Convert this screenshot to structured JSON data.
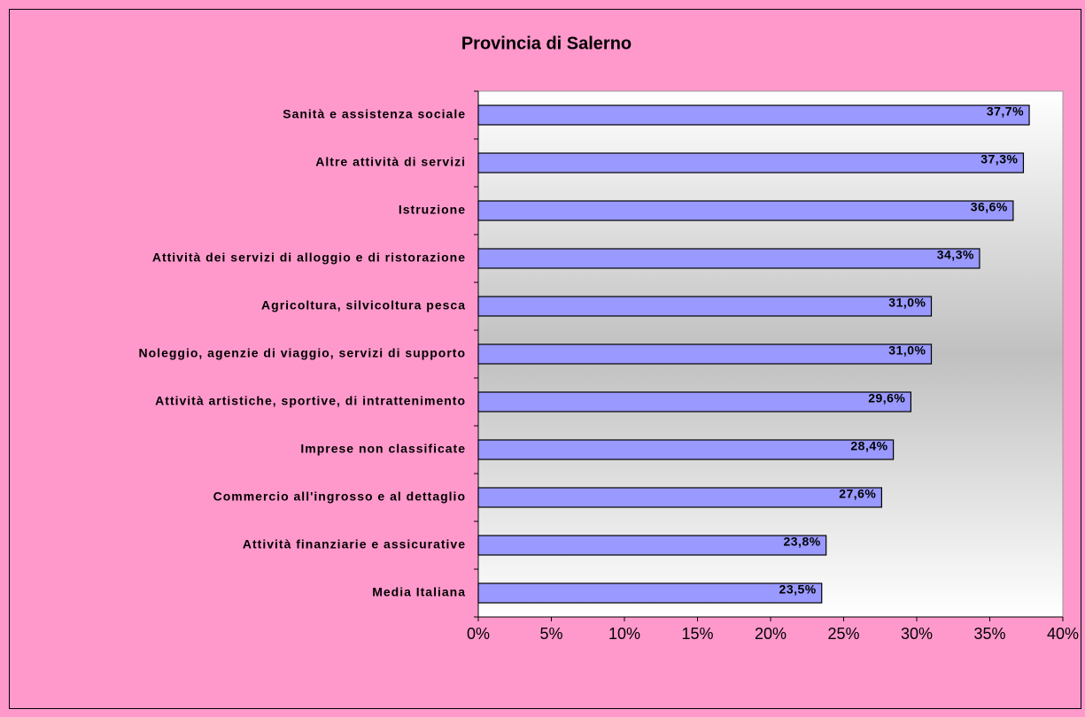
{
  "chart_data": {
    "type": "bar",
    "orientation": "horizontal",
    "title": "Provincia di Salerno",
    "categories": [
      "Sanità e assistenza sociale",
      "Altre attività di servizi",
      "Istruzione",
      "Attività dei servizi di alloggio e di ristorazione",
      "Agricoltura, silvicoltura pesca",
      "Noleggio, agenzie di viaggio, servizi di supporto",
      "Attività artistiche, sportive, di intrattenimento",
      "Imprese non classificate",
      "Commercio all'ingrosso e al dettaglio",
      "Attività finanziarie e assicurative",
      "Media Italiana"
    ],
    "values": [
      37.7,
      37.3,
      36.6,
      34.3,
      31.0,
      31.0,
      29.6,
      28.4,
      27.6,
      23.8,
      23.5
    ],
    "value_labels": [
      "37,7%",
      "37,3%",
      "36,6%",
      "34,3%",
      "31,0%",
      "31,0%",
      "29,6%",
      "28,4%",
      "27,6%",
      "23,8%",
      "23,5%"
    ],
    "color": "#9999ff",
    "xlim": [
      0,
      40
    ],
    "xticks": [
      {
        "value": 0,
        "label": "0%"
      },
      {
        "value": 5,
        "label": "5%"
      },
      {
        "value": 10,
        "label": "10%"
      },
      {
        "value": 15,
        "label": "15%"
      },
      {
        "value": 20,
        "label": "20%"
      },
      {
        "value": 25,
        "label": "25%"
      },
      {
        "value": 30,
        "label": "30%"
      },
      {
        "value": 35,
        "label": "35%"
      },
      {
        "value": 40,
        "label": "40%"
      }
    ]
  }
}
